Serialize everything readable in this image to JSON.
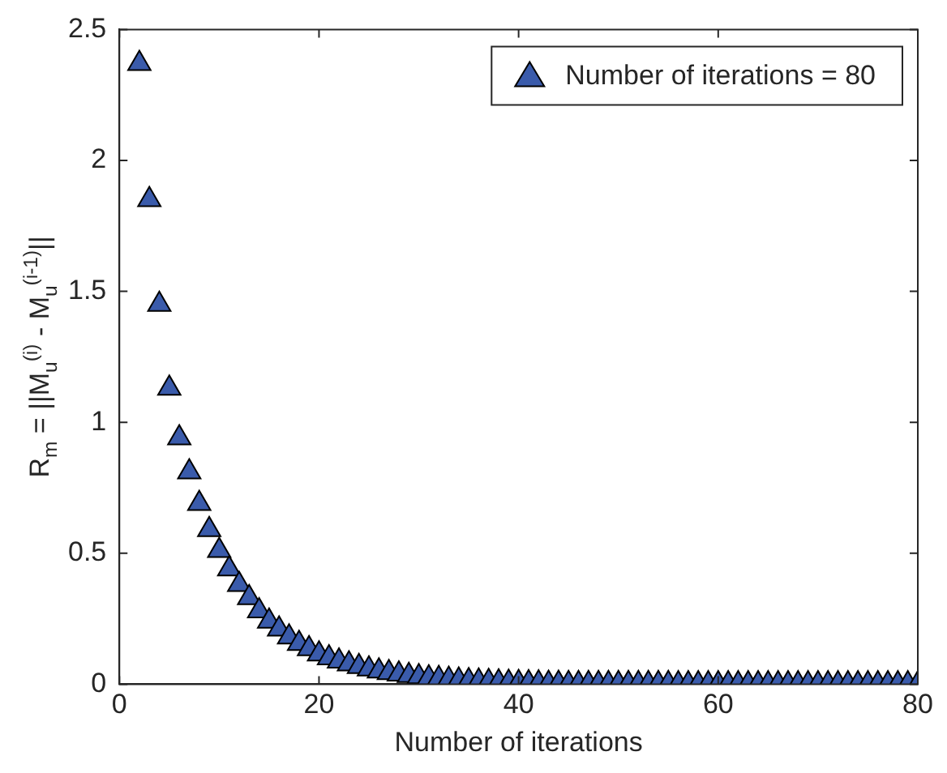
{
  "chart_data": {
    "type": "scatter",
    "xlabel": "Number of iterations",
    "ylabel": "R$_{m}$ = ||M$_{u}$$^{(i)}$ - M$_{u}$$^{(i-1)}$||",
    "xlim": [
      0,
      80
    ],
    "xticks": [
      0,
      20,
      40,
      60,
      80
    ],
    "ylim": [
      0,
      2.5
    ],
    "yticks": [
      0,
      0.5,
      1,
      1.5,
      2,
      2.5
    ],
    "grid": false,
    "legend": "top right",
    "marker": "triangle",
    "x": [
      2,
      3,
      4,
      5,
      6,
      7,
      8,
      9,
      10,
      11,
      12,
      13,
      14,
      15,
      16,
      17,
      18,
      19,
      20,
      21,
      22,
      23,
      24,
      25,
      26,
      27,
      28,
      29,
      30,
      31,
      32,
      33,
      34,
      35,
      36,
      37,
      38,
      39,
      40,
      41,
      42,
      43,
      44,
      45,
      46,
      47,
      48,
      49,
      50,
      51,
      52,
      53,
      54,
      55,
      56,
      57,
      58,
      59,
      60,
      61,
      62,
      63,
      64,
      65,
      66,
      67,
      68,
      69,
      70,
      71,
      72,
      73,
      74,
      75,
      76,
      77,
      78,
      79,
      80
    ],
    "series": [
      {
        "name": "Number of iterations = 80",
        "color": "#3a5bab",
        "values": [
          2.37,
          1.85,
          1.45,
          1.13,
          0.94,
          0.81,
          0.69,
          0.59,
          0.51,
          0.44,
          0.38,
          0.33,
          0.28,
          0.24,
          0.21,
          0.18,
          0.155,
          0.135,
          0.115,
          0.1,
          0.088,
          0.077,
          0.067,
          0.058,
          0.05,
          0.044,
          0.038,
          0.033,
          0.028,
          0.024,
          0.021,
          0.018,
          0.015,
          0.013,
          0.011,
          0.01,
          0.008,
          0.007,
          0.006,
          0.005,
          0.004,
          0.003,
          0.003,
          0.002,
          0.002,
          0.002,
          0.002,
          0.002,
          0.002,
          0.002,
          0.002,
          0.002,
          0.002,
          0.002,
          0.001,
          0.001,
          0.001,
          0.001,
          0.001,
          0.001,
          0.001,
          0.001,
          0.001,
          0.001,
          0.001,
          0.001,
          0.001,
          0.001,
          0.001,
          0.001,
          0.001,
          0.001,
          0.001,
          0.001,
          0.001,
          0.001,
          0.001,
          0.001,
          0.001
        ]
      }
    ]
  }
}
